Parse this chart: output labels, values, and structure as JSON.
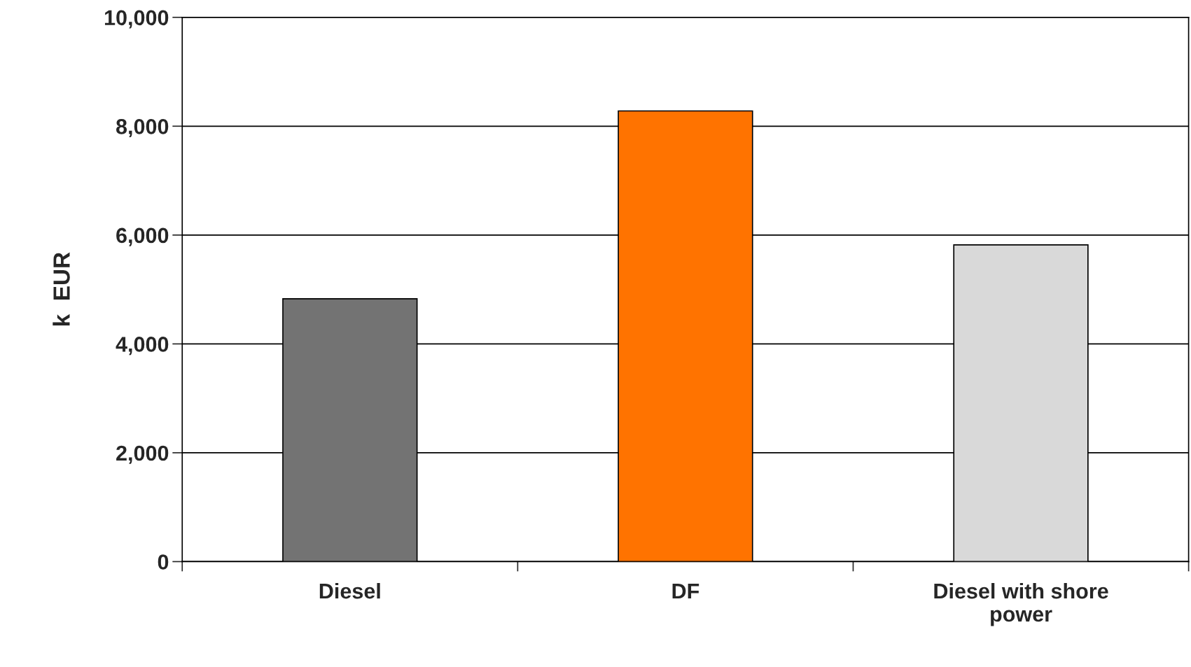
{
  "chart_data": {
    "type": "bar",
    "ylabel": "k  EUR",
    "categories": [
      "Diesel",
      "DF",
      "Diesel with shore\npower"
    ],
    "values": [
      4830,
      8280,
      5820
    ],
    "colors": [
      "#737373",
      "#ff7300",
      "#d9d9d9"
    ],
    "ylim": [
      0,
      10000
    ],
    "yticks": [
      {
        "value": 0,
        "label": "0"
      },
      {
        "value": 2000,
        "label": "2,000"
      },
      {
        "value": 4000,
        "label": "4,000"
      },
      {
        "value": 6000,
        "label": "6,000"
      },
      {
        "value": 8000,
        "label": "8,000"
      },
      {
        "value": 10000,
        "label": "10,000"
      }
    ],
    "grid": "y",
    "legend": false
  }
}
